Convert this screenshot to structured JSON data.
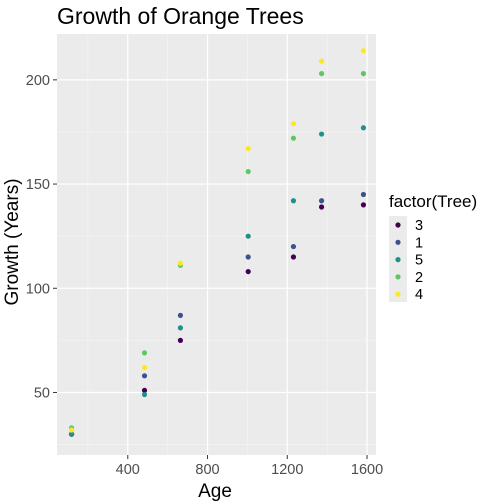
{
  "chart_data": {
    "type": "scatter",
    "title": "Growth of Orange Trees",
    "xlabel": "Age",
    "ylabel": "Growth (Years)",
    "xlim": [
      45,
      1645
    ],
    "ylim": [
      20,
      222
    ],
    "x_ticks": [
      400,
      800,
      1200,
      1600
    ],
    "x_minor": [
      200,
      600,
      1000,
      1400
    ],
    "y_ticks": [
      50,
      100,
      150,
      200
    ],
    "y_minor": [
      25,
      75,
      125,
      175
    ],
    "grid": true,
    "legend_title": "factor(Tree)",
    "legend_position": "right",
    "x": [
      118,
      484,
      664,
      1004,
      1231,
      1372,
      1582
    ],
    "series": [
      {
        "name": "3",
        "color": "#440154",
        "values": [
          30,
          51,
          75,
          108,
          115,
          139,
          140
        ]
      },
      {
        "name": "1",
        "color": "#3b528b",
        "values": [
          30,
          58,
          87,
          115,
          120,
          142,
          145
        ]
      },
      {
        "name": "5",
        "color": "#21908c",
        "values": [
          30,
          49,
          81,
          125,
          142,
          174,
          177
        ]
      },
      {
        "name": "2",
        "color": "#5dc863",
        "values": [
          33,
          69,
          111,
          156,
          172,
          203,
          203
        ]
      },
      {
        "name": "4",
        "color": "#fde725",
        "values": [
          32,
          62,
          112,
          167,
          179,
          209,
          214
        ]
      }
    ]
  }
}
